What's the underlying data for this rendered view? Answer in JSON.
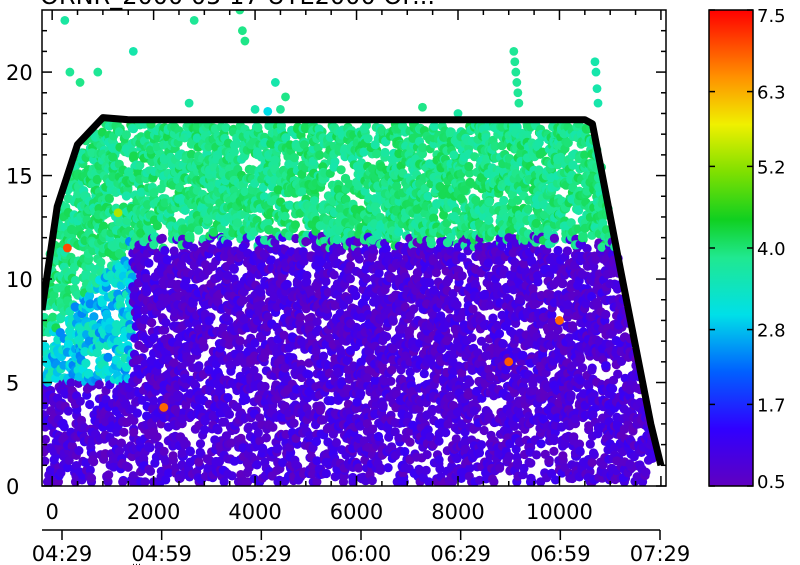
{
  "chart_data": {
    "type": "scatter",
    "title": "ORNR_2000 05 17 UTE2000 OF...",
    "xlabel": "",
    "ylabel": "",
    "x_range": [
      -200,
      12100
    ],
    "y_range": [
      0,
      23
    ],
    "x_ticks": [
      0,
      2000,
      4000,
      6000,
      8000,
      10000
    ],
    "x_tick_labels": [
      "0",
      "2000",
      "4000",
      "6000",
      "8000",
      "10000"
    ],
    "y_ticks": [
      0,
      5,
      10,
      15,
      20
    ],
    "y_tick_labels": [
      "0",
      "5",
      "10",
      "15",
      "20"
    ],
    "time_axis_labels": [
      "04:29",
      "04:59",
      "05:29",
      "06:00",
      "06:29",
      "06:59",
      "07:29"
    ],
    "colorbar": {
      "min": 0.5,
      "max": 7.5,
      "labels": [
        "7.5",
        "6.3",
        "5.2",
        "4.0",
        "2.8",
        "1.7",
        "0.5"
      ]
    },
    "ceiling_profile": {
      "x": [
        -200,
        100,
        500,
        1000,
        1500,
        4000,
        7000,
        9000,
        10500,
        10650,
        11200,
        11800,
        12000
      ],
      "y": [
        8.5,
        13.5,
        16.5,
        17.8,
        17.7,
        17.7,
        17.7,
        17.7,
        17.7,
        17.5,
        10.5,
        3.0,
        1.0
      ]
    },
    "outlier_points": [
      {
        "x": 250,
        "y": 22.5,
        "c": 3.7
      },
      {
        "x": 350,
        "y": 20.0,
        "c": 3.8
      },
      {
        "x": 550,
        "y": 19.5,
        "c": 3.9
      },
      {
        "x": 900,
        "y": 20.0,
        "c": 3.8
      },
      {
        "x": 1600,
        "y": 21.0,
        "c": 3.6
      },
      {
        "x": 2700,
        "y": 18.5,
        "c": 3.7
      },
      {
        "x": 2800,
        "y": 22.5,
        "c": 3.8
      },
      {
        "x": 3700,
        "y": 23.0,
        "c": 3.9
      },
      {
        "x": 3750,
        "y": 22.0,
        "c": 3.9
      },
      {
        "x": 3800,
        "y": 21.5,
        "c": 3.9
      },
      {
        "x": 4000,
        "y": 18.2,
        "c": 3.6
      },
      {
        "x": 4400,
        "y": 19.5,
        "c": 3.6
      },
      {
        "x": 4500,
        "y": 18.2,
        "c": 3.8
      },
      {
        "x": 4600,
        "y": 18.8,
        "c": 3.9
      },
      {
        "x": 7300,
        "y": 18.3,
        "c": 3.9
      },
      {
        "x": 8000,
        "y": 18.0,
        "c": 3.7
      },
      {
        "x": 9100,
        "y": 21.0,
        "c": 3.8
      },
      {
        "x": 9120,
        "y": 20.5,
        "c": 3.8
      },
      {
        "x": 9140,
        "y": 20.0,
        "c": 3.8
      },
      {
        "x": 9160,
        "y": 19.5,
        "c": 3.8
      },
      {
        "x": 9180,
        "y": 19.0,
        "c": 3.8
      },
      {
        "x": 9200,
        "y": 18.5,
        "c": 3.8
      },
      {
        "x": 10700,
        "y": 20.5,
        "c": 3.6
      },
      {
        "x": 10720,
        "y": 20.0,
        "c": 3.6
      },
      {
        "x": 10740,
        "y": 19.2,
        "c": 3.6
      },
      {
        "x": 10760,
        "y": 18.5,
        "c": 3.6
      },
      {
        "x": 4250,
        "y": 18.1,
        "c": 3.0
      },
      {
        "x": 2200,
        "y": 3.8,
        "c": 6.8
      },
      {
        "x": 1300,
        "y": 13.2,
        "c": 5.4
      },
      {
        "x": 300,
        "y": 11.5,
        "c": 7.0
      },
      {
        "x": 9000,
        "y": 6.0,
        "c": 6.9
      },
      {
        "x": 10000,
        "y": 8.0,
        "c": 6.8
      }
    ]
  }
}
